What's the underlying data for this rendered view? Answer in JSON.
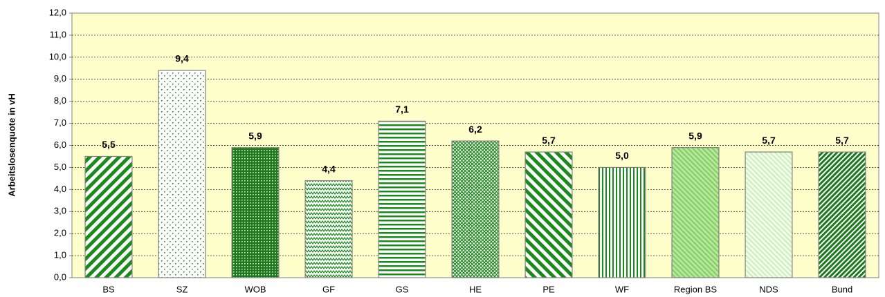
{
  "chart_data": {
    "type": "bar",
    "y_axis_label": "Arbeitslosenquote in vH",
    "categories": [
      "BS",
      "SZ",
      "WOB",
      "GF",
      "GS",
      "HE",
      "PE",
      "WF",
      "Region BS",
      "NDS",
      "Bund"
    ],
    "values": [
      5.5,
      9.4,
      5.9,
      4.4,
      7.1,
      6.2,
      5.7,
      5.0,
      5.9,
      5.7,
      5.7
    ],
    "value_labels": [
      "5,5",
      "9,4",
      "5,9",
      "4,4",
      "7,1",
      "6,2",
      "5,7",
      "5,0",
      "5,9",
      "5,7",
      "5,7"
    ],
    "color": "#1a8a1a",
    "ylim": [
      0,
      12
    ],
    "yticks": [
      {
        "value": 0,
        "label": "0,0"
      },
      {
        "value": 1,
        "label": "1,0"
      },
      {
        "value": 2,
        "label": "2,0"
      },
      {
        "value": 3,
        "label": "3,0"
      },
      {
        "value": 4,
        "label": "4,0"
      },
      {
        "value": 5,
        "label": "5,0"
      },
      {
        "value": 6,
        "label": "6,0"
      },
      {
        "value": 7,
        "label": "7,0"
      },
      {
        "value": 8,
        "label": "8,0"
      },
      {
        "value": 9,
        "label": "9,0"
      },
      {
        "value": 10,
        "label": "10,0"
      },
      {
        "value": 11,
        "label": "11,0"
      },
      {
        "value": 12,
        "label": "12,0"
      }
    ],
    "grid": true
  }
}
